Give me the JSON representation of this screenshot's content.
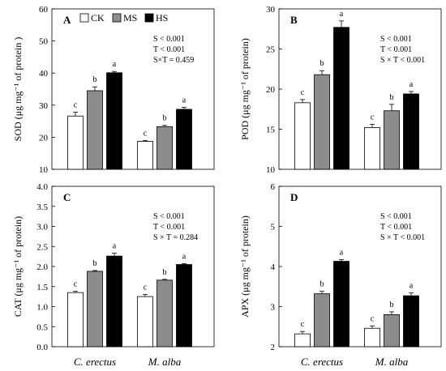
{
  "legend": [
    "CK",
    "MS",
    "HS"
  ],
  "x_categories": [
    "C. erectus",
    "M. alba"
  ],
  "colors": {
    "CK": "#ffffff",
    "MS": "#8c8c8c",
    "HS": "#000000"
  },
  "chart_data": [
    {
      "type": "bar",
      "panel": "A",
      "ylabel": "SOD (μg mg⁻¹ of protein )",
      "ylim": [
        10,
        60
      ],
      "yticks": [
        10,
        20,
        30,
        40,
        50,
        60
      ],
      "categories": [
        "C. erectus",
        "M. alba"
      ],
      "series": [
        {
          "name": "CK",
          "values": [
            26.6,
            18.7
          ],
          "errors": [
            1.2,
            0.3
          ],
          "letters": [
            "c",
            "c"
          ]
        },
        {
          "name": "MS",
          "values": [
            34.5,
            23.3
          ],
          "errors": [
            1.2,
            0.4
          ],
          "letters": [
            "b",
            "b"
          ]
        },
        {
          "name": "HS",
          "values": [
            40.1,
            28.7
          ],
          "errors": [
            0.4,
            0.6
          ],
          "letters": [
            "a",
            "a"
          ]
        }
      ],
      "stats": [
        "S < 0.001",
        "T < 0.001",
        "S×T = 0.459"
      ],
      "legend_position": "top-left"
    },
    {
      "type": "bar",
      "panel": "B",
      "ylabel": "POD (μg mg⁻¹ of protein)",
      "ylim": [
        10,
        30
      ],
      "yticks": [
        10,
        15,
        20,
        25,
        30
      ],
      "categories": [
        "C. erectus",
        "M. alba"
      ],
      "series": [
        {
          "name": "CK",
          "values": [
            18.3,
            15.2
          ],
          "errors": [
            0.4,
            0.4
          ],
          "letters": [
            "c",
            "c"
          ]
        },
        {
          "name": "MS",
          "values": [
            21.8,
            17.3
          ],
          "errors": [
            0.5,
            0.8
          ],
          "letters": [
            "b",
            "b"
          ]
        },
        {
          "name": "HS",
          "values": [
            27.7,
            19.4
          ],
          "errors": [
            0.8,
            0.3
          ],
          "letters": [
            "a",
            "a"
          ]
        }
      ],
      "stats": [
        "S < 0.001",
        "T < 0.001",
        "S × T < 0.001"
      ]
    },
    {
      "type": "bar",
      "panel": "C",
      "ylabel": "CAT (μg mg⁻¹ of protein)",
      "ylim": [
        0.0,
        4.0
      ],
      "yticks": [
        "0.0",
        "0.5",
        "1.0",
        "1.5",
        "2.0",
        "2.5",
        "3.0",
        "3.5",
        "4.0"
      ],
      "categories": [
        "C. erectus",
        "M. alba"
      ],
      "series": [
        {
          "name": "CK",
          "values": [
            1.35,
            1.25
          ],
          "errors": [
            0.03,
            0.05
          ],
          "letters": [
            "c",
            "c"
          ]
        },
        {
          "name": "MS",
          "values": [
            1.88,
            1.66
          ],
          "errors": [
            0.02,
            0.02
          ],
          "letters": [
            "b",
            "b"
          ]
        },
        {
          "name": "HS",
          "values": [
            2.26,
            2.05
          ],
          "errors": [
            0.07,
            0.02
          ],
          "letters": [
            "a",
            "a"
          ]
        }
      ],
      "stats": [
        "S < 0.001",
        "T < 0.001",
        "S × T = 0.284"
      ]
    },
    {
      "type": "bar",
      "panel": "D",
      "ylabel": "APX (μg mg⁻¹ of protein)",
      "ylim": [
        2,
        6
      ],
      "yticks": [
        2,
        3,
        4,
        5,
        6
      ],
      "categories": [
        "C. erectus",
        "M. alba"
      ],
      "series": [
        {
          "name": "CK",
          "values": [
            2.32,
            2.46
          ],
          "errors": [
            0.06,
            0.06
          ],
          "letters": [
            "c",
            "c"
          ]
        },
        {
          "name": "MS",
          "values": [
            3.32,
            2.8
          ],
          "errors": [
            0.06,
            0.07
          ],
          "letters": [
            "b",
            "b"
          ]
        },
        {
          "name": "HS",
          "values": [
            4.13,
            3.27
          ],
          "errors": [
            0.04,
            0.07
          ],
          "letters": [
            "a",
            "a"
          ]
        }
      ],
      "stats": [
        "S < 0.001",
        "T < 0.001",
        "S × T < 0.001"
      ]
    }
  ]
}
